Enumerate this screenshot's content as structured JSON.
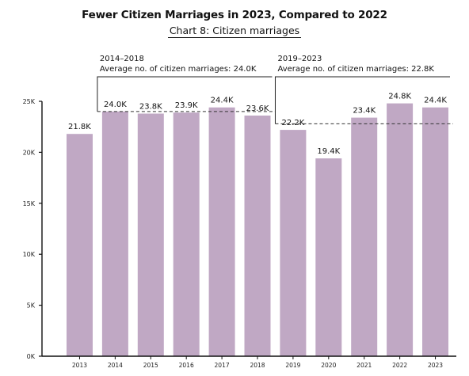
{
  "title": "Fewer Citizen Marriages in 2023, Compared to 2022",
  "subtitle": "Chart 8: Citizen marriages",
  "chart_data": {
    "type": "bar",
    "categories": [
      "2013",
      "2014",
      "2015",
      "2016",
      "2017",
      "2018",
      "2019",
      "2020",
      "2021",
      "2022",
      "2023"
    ],
    "values": [
      21.8,
      24.0,
      23.8,
      23.9,
      24.4,
      23.6,
      22.2,
      19.4,
      23.4,
      24.8,
      24.4
    ],
    "data_labels": [
      "21.8K",
      "24.0K",
      "23.8K",
      "23.9K",
      "24.4K",
      "23.6K",
      "22.2K",
      "19.4K",
      "23.4K",
      "24.8K",
      "24.4K"
    ],
    "unit": "K",
    "ylim": [
      0,
      25
    ],
    "yticks": [
      0,
      5,
      10,
      15,
      20,
      25
    ],
    "ytick_labels": [
      "0K",
      "5K",
      "10K",
      "15K",
      "20K",
      "25K"
    ],
    "bar_color": "#c0a8c4",
    "grid": false,
    "periods": [
      {
        "range_label": "2014–2018",
        "avg_label": "Average no. of citizen marriages: 24.0K",
        "start": 1,
        "end": 5,
        "average": 24.0
      },
      {
        "range_label": "2019–2023",
        "avg_label": "Average no. of citizen marriages: 22.8K",
        "start": 6,
        "end": 10,
        "average": 22.8
      }
    ]
  }
}
